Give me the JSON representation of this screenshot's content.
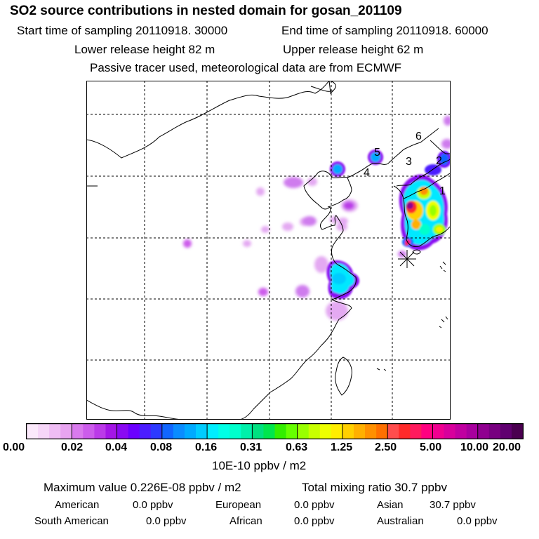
{
  "header": {
    "title": "SO2 source contributions in nested domain for gosan_201109",
    "start_label": "Start time of sampling 20110918. 30000",
    "end_label": "End time of sampling 20110918. 60000",
    "lower_label": "Lower release height   82 m",
    "upper_label": "Upper release height   62 m",
    "note": "Passive tracer used, meteorological data are from ECMWF"
  },
  "map": {
    "station_icon": "asterisk-receptor-icon",
    "site_labels": [
      "1",
      "2",
      "3",
      "4",
      "5",
      "6"
    ]
  },
  "legend": {
    "tick_labels": [
      "0.00",
      "0.02",
      "0.04",
      "0.08",
      "0.16",
      "0.31",
      "0.63",
      "1.25",
      "2.50",
      "5.00",
      "10.00",
      "20.00"
    ],
    "swatch_colors": [
      "#fbe9fb",
      "#f6d6f8",
      "#efbdf4",
      "#e8a4f0",
      "#d97aed",
      "#cc5ceb",
      "#bb3ae8",
      "#a416e6",
      "#8a0af2",
      "#6b00ff",
      "#4c1dff",
      "#2d3aff",
      "#1166ff",
      "#0a8cff",
      "#00aaff",
      "#00ccff",
      "#00eeff",
      "#00ffe6",
      "#00ffcc",
      "#00f0aa",
      "#00e080",
      "#00e64d",
      "#33ee00",
      "#66ff00",
      "#99ff00",
      "#c8ff00",
      "#eeff00",
      "#ffee00",
      "#ffd000",
      "#ffb000",
      "#ff9000",
      "#ff7000",
      "#ff4d4d",
      "#ff2a2a",
      "#ff1a5e",
      "#ff0080",
      "#f00090",
      "#d8009c",
      "#c000a0",
      "#a8009e",
      "#900090",
      "#780080",
      "#600070",
      "#4a0050"
    ],
    "units": "10E-10 ppbv / m2"
  },
  "summary": {
    "max_value": "Maximum value  0.226E-08 ppbv / m2",
    "total_mixing": "Total mixing ratio       30.7 ppbv",
    "american_label": "American",
    "american_value": "0.0 ppbv",
    "european_label": "European",
    "european_value": "0.0 ppbv",
    "asian_label": "Asian",
    "asian_value": "30.7 ppbv",
    "south_american_label": "South American",
    "south_american_value": "0.0 ppbv",
    "african_label": "African",
    "african_value": "0.0 ppbv",
    "australian_label": "Australian",
    "australian_value": "0.0 ppbv"
  }
}
